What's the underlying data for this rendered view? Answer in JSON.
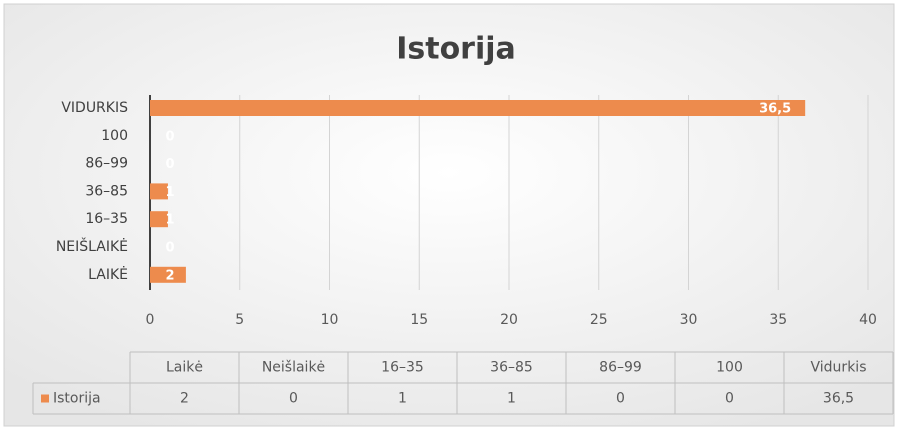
{
  "chart_data": {
    "type": "barh",
    "title": "Istorija",
    "categories": [
      "LAIKĖ",
      "NEIŠLAIKĖ",
      "16–35",
      "36–85",
      "86–99",
      "100",
      "VIDURKIS"
    ],
    "series": [
      {
        "name": "Istorija",
        "color": "#ed8b4d",
        "values": [
          2,
          0,
          1,
          1,
          0,
          0,
          36.5
        ],
        "value_labels": [
          "2",
          "0",
          "1",
          "1",
          "0",
          "0",
          "36,5"
        ]
      }
    ],
    "xlim": [
      0,
      40
    ],
    "xticks": [
      0,
      5,
      10,
      15,
      20,
      25,
      30,
      35,
      40
    ],
    "grid": true,
    "table": {
      "columns": [
        "Laikė",
        "Neišlaikė",
        "16–35",
        "36–85",
        "86–99",
        "100",
        "Vidurkis"
      ]
    }
  }
}
